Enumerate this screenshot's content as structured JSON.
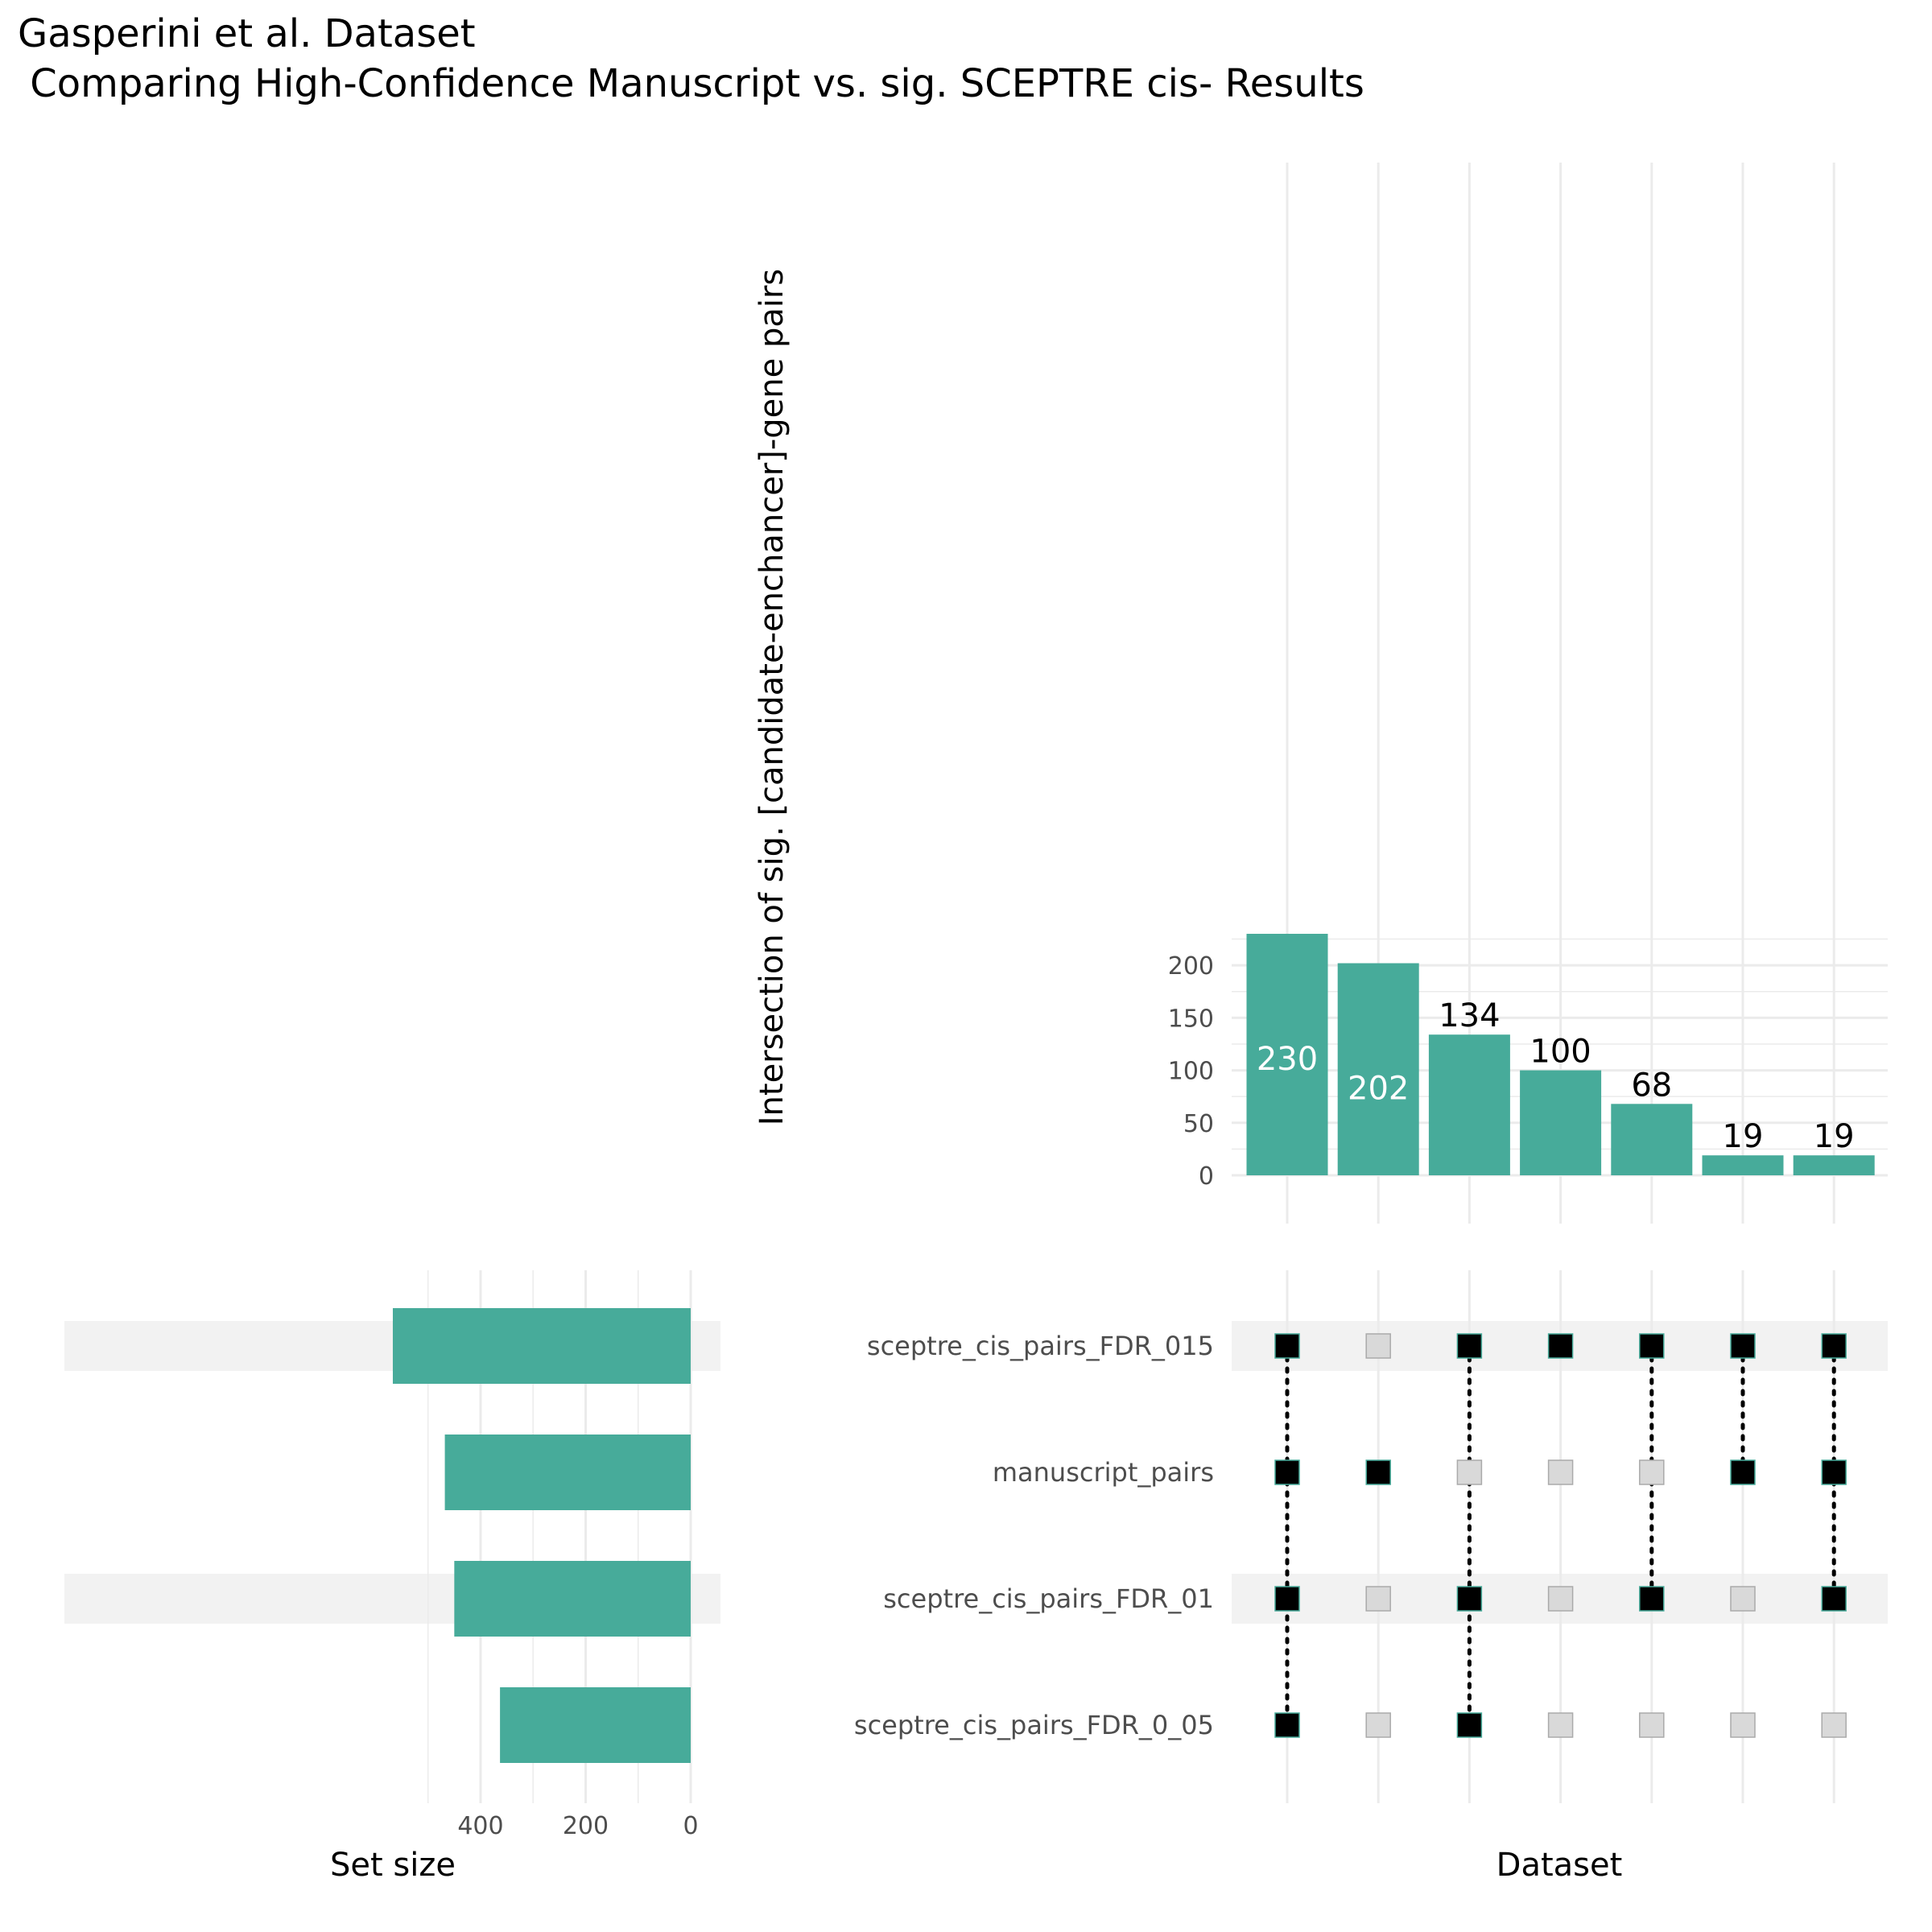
{
  "title_line1": "Gasperini et al. Dataset",
  "title_line2": " Comparing High-Confidence Manuscript vs. sig. SCEPTRE cis- Results",
  "colors": {
    "bar": "#47ab9a",
    "dot_on": "#000000",
    "dot_off": "#d9d9d9",
    "stripe": "#f2f2f2",
    "grid": "#ebebeb"
  },
  "chart_data": [
    {
      "type": "bar",
      "name": "intersection-sizes",
      "ylabel": "Intersection of sig. [candidate-enchancer]-gene pairs",
      "xlabel": "Dataset",
      "values": [
        230,
        202,
        134,
        100,
        68,
        19,
        19
      ],
      "bar_labels": [
        "230",
        "202",
        "134",
        "100",
        "68",
        "19",
        "19"
      ],
      "ylim": [
        0,
        230
      ],
      "yticks": [
        0,
        50,
        100,
        150,
        200
      ],
      "grid": true
    },
    {
      "type": "bar",
      "orientation": "horizontal-reversed",
      "name": "set-sizes",
      "xlabel": "Set size",
      "categories": [
        "sceptre_cis_pairs_FDR_015",
        "manuscript_pairs",
        "sceptre_cis_pairs_FDR_01",
        "sceptre_cis_pairs_FDR_0_05"
      ],
      "values": [
        567,
        468,
        450,
        363
      ],
      "xticks": [
        400,
        200,
        0
      ],
      "grid": true
    },
    {
      "type": "table",
      "name": "intersection-matrix",
      "sets": [
        "sceptre_cis_pairs_FDR_015",
        "manuscript_pairs",
        "sceptre_cis_pairs_FDR_01",
        "sceptre_cis_pairs_FDR_0_05"
      ],
      "membership": [
        [
          1,
          0,
          1,
          1,
          1,
          1,
          1
        ],
        [
          1,
          1,
          0,
          0,
          0,
          1,
          1
        ],
        [
          1,
          0,
          1,
          0,
          1,
          0,
          1
        ],
        [
          1,
          0,
          1,
          0,
          0,
          0,
          0
        ]
      ]
    }
  ]
}
